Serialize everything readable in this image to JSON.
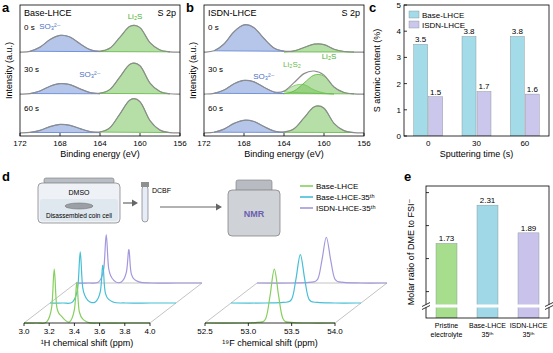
{
  "chart_data": [
    {
      "panel_label": "a",
      "type": "line",
      "title": "Base-LHCE",
      "subtitle": "S 2p",
      "x_label": "Binding energy (eV)",
      "y_label": "Intensity (a.u.)",
      "xlim": [
        172,
        156
      ],
      "xticks": [
        172,
        168,
        164,
        160,
        156
      ],
      "ylim": [
        0,
        12.5
      ],
      "tick_labels": "x",
      "series": [
        {
          "name": "0 s",
          "type": "line",
          "color": "#8c8c8c",
          "x": [
            172,
            171,
            170,
            169,
            168,
            167,
            166,
            165,
            164,
            163,
            162,
            161,
            160,
            159,
            158,
            157,
            156
          ],
          "values": [
            8.0,
            8.08,
            8.48,
            9.2,
            9.6,
            9.44,
            8.8,
            8.24,
            8.1,
            8.39,
            9.43,
            10.47,
            10.34,
            8.91,
            8.21,
            8.03,
            8.0
          ]
        },
        {
          "type": "area",
          "color": "#5b80d0",
          "x": [
            171,
            170,
            169,
            168,
            167,
            166,
            165,
            164
          ],
          "values": [
            8.08,
            8.48,
            9.2,
            9.6,
            9.44,
            8.8,
            8.24,
            8.05
          ]
        },
        {
          "type": "area",
          "color": "#5cb83c",
          "x": [
            164,
            163,
            162,
            161,
            160,
            159,
            158,
            157
          ],
          "values": [
            8.05,
            8.39,
            9.43,
            10.47,
            10.34,
            8.91,
            8.21,
            8.03
          ]
        },
        {
          "name": "30 s",
          "type": "line",
          "color": "#8c8c8c",
          "x": [
            172,
            171,
            170,
            169,
            168,
            167,
            166,
            165,
            164,
            163,
            162,
            161,
            160,
            159,
            158,
            157,
            156
          ],
          "values": [
            4.0,
            4.05,
            4.3,
            4.75,
            5.0,
            4.9,
            4.5,
            4.15,
            4.09,
            4.45,
            5.65,
            6.85,
            6.7,
            5.05,
            4.24,
            4.03,
            4.0
          ]
        },
        {
          "type": "area",
          "color": "#5b80d0",
          "x": [
            171,
            170,
            169,
            168,
            167,
            166,
            165,
            164
          ],
          "values": [
            4.05,
            4.3,
            4.75,
            5.0,
            4.9,
            4.5,
            4.15,
            4.03
          ]
        },
        {
          "type": "area",
          "color": "#5cb83c",
          "x": [
            164,
            163,
            162,
            161,
            160,
            159,
            158,
            157
          ],
          "values": [
            4.06,
            4.45,
            5.65,
            6.85,
            6.7,
            5.05,
            4.24,
            4.03
          ]
        },
        {
          "name": "60 s",
          "type": "line",
          "color": "#8c8c8c",
          "x": [
            172,
            171,
            170,
            169,
            168,
            167,
            166,
            165,
            164,
            163,
            162,
            161,
            160,
            159,
            158,
            157,
            156
          ],
          "values": [
            0.3,
            0.34,
            0.54,
            0.9,
            1.1,
            1.02,
            0.7,
            0.42,
            0.39,
            0.8,
            2.12,
            3.44,
            3.27,
            1.46,
            0.56,
            0.33,
            0.3
          ]
        },
        {
          "type": "area",
          "color": "#5b80d0",
          "x": [
            171,
            170,
            169,
            168,
            167,
            166,
            165,
            164
          ],
          "values": [
            0.34,
            0.54,
            0.9,
            1.1,
            1.02,
            0.7,
            0.42,
            0.32
          ]
        },
        {
          "type": "area",
          "color": "#5cb83c",
          "x": [
            164,
            163,
            162,
            161,
            160,
            159,
            158,
            157
          ],
          "values": [
            0.37,
            0.8,
            2.12,
            3.44,
            3.27,
            1.46,
            0.56,
            0.33
          ]
        }
      ],
      "annotations": [
        {
          "text": "SO₃²⁻",
          "x": 169,
          "y": 10.2,
          "color": "#4a6fc0"
        },
        {
          "text": "Li₂S",
          "x": 160.5,
          "y": 11.2,
          "color": "#4caf32"
        },
        {
          "text": "SO₃²⁻",
          "x": 165,
          "y": 5.6,
          "color": "#4a6fc0"
        }
      ]
    },
    {
      "panel_label": "b",
      "type": "line",
      "title": "ISDN-LHCE",
      "subtitle": "S 2p",
      "x_label": "Binding energy (eV)",
      "y_label": "Intensity (a.u.)",
      "xlim": [
        172,
        156
      ],
      "xticks": [
        172,
        168,
        164,
        160,
        156
      ],
      "ylim": [
        0,
        12.5
      ],
      "tick_labels": "x",
      "series": [
        {
          "name": "0 s",
          "type": "line",
          "color": "#8c8c8c",
          "x": [
            172,
            171,
            170,
            169,
            168,
            167,
            166,
            165,
            164,
            163,
            162,
            161,
            160,
            159,
            158,
            157,
            156
          ],
          "values": [
            8.0,
            8.13,
            8.78,
            9.95,
            10.6,
            10.34,
            9.3,
            8.39,
            8.1,
            8.12,
            8.44,
            8.76,
            8.72,
            8.28,
            8.06,
            8.01,
            8.0
          ]
        },
        {
          "type": "area",
          "color": "#5b80d0",
          "x": [
            171,
            170,
            169,
            168,
            167,
            166,
            165,
            164
          ],
          "values": [
            8.13,
            8.78,
            9.95,
            10.6,
            10.34,
            9.3,
            8.39,
            8.08
          ]
        },
        {
          "type": "area",
          "color": "#5cb83c",
          "x": [
            164,
            163,
            162,
            161,
            160,
            159,
            158,
            157
          ],
          "values": [
            8.02,
            8.12,
            8.44,
            8.76,
            8.72,
            8.28,
            8.06,
            8.01
          ]
        },
        {
          "name": "30 s",
          "type": "line",
          "color": "#8c8c8c",
          "x": [
            172,
            171,
            170,
            169,
            168,
            167,
            166,
            165,
            164,
            163,
            162,
            161,
            160,
            159,
            158,
            157,
            156
          ],
          "values": [
            4.0,
            4.07,
            4.39,
            4.98,
            5.3,
            5.17,
            4.65,
            4.2,
            4.28,
            5.09,
            5.95,
            6.2,
            5.81,
            4.67,
            4.15,
            4.02,
            4.0
          ]
        },
        {
          "type": "area",
          "color": "#5b80d0",
          "x": [
            171,
            170,
            169,
            168,
            167,
            166,
            165,
            164
          ],
          "values": [
            4.07,
            4.39,
            4.98,
            5.3,
            5.17,
            4.65,
            4.2,
            4.04
          ]
        },
        {
          "type": "area",
          "color": "#86c86a",
          "x": [
            164,
            163,
            162,
            161,
            160,
            159
          ],
          "values": [
            4.2,
            4.8,
            4.9,
            4.4,
            4.1,
            4.0
          ]
        },
        {
          "type": "area",
          "color": "#5cb83c",
          "x": [
            164,
            163,
            162,
            161,
            160,
            159,
            158,
            157
          ],
          "values": [
            4.04,
            4.29,
            5.05,
            5.81,
            5.71,
            4.67,
            4.15,
            4.02
          ]
        },
        {
          "name": "60 s",
          "type": "line",
          "color": "#8c8c8c",
          "x": [
            172,
            171,
            170,
            169,
            168,
            167,
            166,
            165,
            164,
            163,
            162,
            161,
            160,
            159,
            158,
            157,
            156
          ],
          "values": [
            0.3,
            0.36,
            0.66,
            1.2,
            1.5,
            1.38,
            0.9,
            0.48,
            0.39,
            0.69,
            1.73,
            2.77,
            2.64,
            1.21,
            0.51,
            0.33,
            0.3
          ]
        },
        {
          "type": "area",
          "color": "#5b80d0",
          "x": [
            171,
            170,
            169,
            168,
            167,
            166,
            165,
            164
          ],
          "values": [
            0.36,
            0.66,
            1.2,
            1.5,
            1.38,
            0.9,
            0.48,
            0.34
          ]
        },
        {
          "type": "area",
          "color": "#5cb83c",
          "x": [
            164,
            163,
            162,
            161,
            160,
            159,
            158,
            157
          ],
          "values": [
            0.35,
            0.69,
            1.73,
            2.77,
            2.64,
            1.21,
            0.51,
            0.33
          ]
        }
      ],
      "annotations": [
        {
          "text": "SO₃²⁻",
          "x": 166,
          "y": 5.4,
          "color": "#4a6fc0"
        },
        {
          "text": "Li₂S₂",
          "x": 163.2,
          "y": 6.6,
          "color": "#6cb84c"
        },
        {
          "text": "Li₂S",
          "x": 159.5,
          "y": 7.3,
          "color": "#4caf32"
        }
      ]
    },
    {
      "panel_label": "c",
      "type": "bar",
      "x_label": "Sputtering time (s)",
      "y_label": "S atomic content (%)",
      "categories": [
        "0",
        "30",
        "60"
      ],
      "series": [
        {
          "name": "Base-LHCE",
          "color": "#a3dbe8",
          "values": [
            3.5,
            3.8,
            3.8
          ]
        },
        {
          "name": "ISDN-LHCE",
          "color": "#cbc6ec",
          "values": [
            1.5,
            1.7,
            1.6
          ]
        }
      ],
      "ylim": [
        0,
        5
      ],
      "yticks": [
        0,
        1,
        2,
        3,
        4,
        5
      ],
      "legend": "top-left",
      "data_labels": true
    },
    {
      "panel_label": "d",
      "type": "line",
      "x_label": "¹H chemical shift (ppm)",
      "xlim": [
        3.0,
        4.0
      ],
      "xticks": [
        {
          "value": 3,
          "label": "3.0"
        },
        {
          "value": 3.2,
          "label": "3.2"
        },
        {
          "value": 3.4,
          "label": "3.4"
        },
        {
          "value": 3.6,
          "label": "3.6"
        },
        {
          "value": 3.8,
          "label": "3.8"
        },
        {
          "value": 4,
          "label": "4.0"
        }
      ],
      "ylim": [
        0,
        1.3
      ],
      "tick_labels": "x",
      "schematic_labels": [
        "DMSO",
        "Disassembled coin cell",
        "DCBF",
        "NMR"
      ],
      "series": [
        {
          "color": "#86cf5f",
          "x": [
            3.0,
            3.1,
            3.18,
            3.22,
            3.24,
            3.26,
            3.3,
            3.36,
            3.4,
            3.42,
            3.44,
            3.5,
            3.6,
            3.8,
            4.0
          ],
          "values": [
            0,
            0,
            0.02,
            0.3,
            1.0,
            0.3,
            0.12,
            0.02,
            0.25,
            0.75,
            0.2,
            0.02,
            0,
            0,
            0
          ]
        },
        {
          "color": "#45bfd6",
          "x": [
            3.0,
            3.1,
            3.18,
            3.22,
            3.24,
            3.26,
            3.3,
            3.36,
            3.4,
            3.42,
            3.44,
            3.5,
            3.6,
            3.8,
            4.0
          ],
          "values": [
            0,
            0,
            0.02,
            0.28,
            0.95,
            0.28,
            0.05,
            0.02,
            0.22,
            0.7,
            0.18,
            0.02,
            0,
            0,
            0
          ]
        },
        {
          "color": "#a497dc",
          "x": [
            3.0,
            3.1,
            3.18,
            3.22,
            3.24,
            3.26,
            3.3,
            3.36,
            3.4,
            3.42,
            3.44,
            3.5,
            3.6,
            3.8,
            4.0
          ],
          "values": [
            0,
            0,
            0.02,
            0.26,
            0.9,
            0.26,
            0.05,
            0.02,
            0.2,
            0.62,
            0.16,
            0.02,
            0,
            0,
            0
          ]
        }
      ]
    },
    {
      "type": "line",
      "x_label": "¹⁹F chemical shift (ppm)",
      "xlim": [
        52.5,
        54.0
      ],
      "xticks": [
        {
          "value": 52.5,
          "label": "52.5"
        },
        {
          "value": 53,
          "label": "53.0"
        },
        {
          "value": 53.5,
          "label": "53.5"
        },
        {
          "value": 54,
          "label": "54.0"
        }
      ],
      "ylim": [
        0,
        1.3
      ],
      "tick_labels": "x",
      "legend": "top-right",
      "series": [
        {
          "name": "Base-LHCE",
          "color": "#86cf5f",
          "x": [
            52.5,
            52.9,
            53.1,
            53.2,
            53.25,
            53.3,
            53.35,
            53.4,
            53.5,
            53.7,
            54.0
          ],
          "values": [
            0,
            0,
            0.01,
            0.08,
            0.5,
            1.0,
            0.5,
            0.08,
            0.01,
            0,
            0
          ]
        },
        {
          "name": "Base-LHCE-35ᵗʰ",
          "color": "#45bfd6",
          "x": [
            52.5,
            52.9,
            53.1,
            53.2,
            53.25,
            53.3,
            53.35,
            53.4,
            53.5,
            53.7,
            54.0
          ],
          "values": [
            0,
            0,
            0.01,
            0.07,
            0.45,
            0.9,
            0.45,
            0.07,
            0.01,
            0,
            0
          ]
        },
        {
          "name": "ISDN-LHCE-35ᵗʰ",
          "color": "#a497dc",
          "x": [
            52.5,
            52.9,
            53.1,
            53.2,
            53.25,
            53.3,
            53.35,
            53.4,
            53.5,
            53.7,
            54.0
          ],
          "values": [
            0,
            0,
            0.01,
            0.07,
            0.43,
            0.85,
            0.43,
            0.07,
            0.01,
            0,
            0
          ]
        }
      ]
    },
    {
      "panel_label": "e",
      "type": "bar",
      "y_label": "Molar ratio of DME to FSI⁻",
      "categories": [
        "Pristine\nelectrolyte",
        "Base-LHCE\n35ᵗʰ",
        "ISDN-LHCE\n35ᵗʰ"
      ],
      "values": [
        1.73,
        2.31,
        1.89
      ],
      "colors": [
        "#a7de8e",
        "#a0d8e7",
        "#c9c3ec"
      ],
      "ylim": [
        0.6,
        2.6
      ],
      "yticks": [
        1,
        1.5,
        2,
        2.5
      ],
      "tick_labels": "x",
      "data_labels": true
    }
  ]
}
